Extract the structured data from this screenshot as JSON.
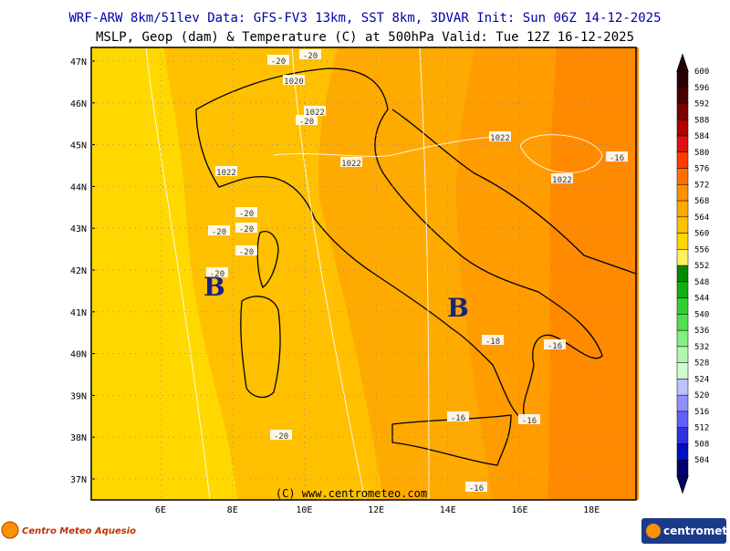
{
  "header": {
    "line1": "WRF-ARW 8km/51lev  Data: GFS-FV3 13km, SST 8km, 3DVAR  Init: Sun 06Z 14-12-2025",
    "line2": "MSLP, Geop (dam) & Temperature (C) at 500hPa  Valid: Tue 12Z 16-12-2025"
  },
  "axes": {
    "latitudes": [
      "47N",
      "46N",
      "45N",
      "44N",
      "43N",
      "42N",
      "41N",
      "40N",
      "39N",
      "38N",
      "37N"
    ],
    "longitudes": [
      "6E",
      "8E",
      "10E",
      "12E",
      "14E",
      "16E",
      "18E"
    ]
  },
  "colorbar": {
    "levels": [
      {
        "label": "600",
        "color": "#2a0000"
      },
      {
        "label": "596",
        "color": "#4a0000"
      },
      {
        "label": "592",
        "color": "#7a0000"
      },
      {
        "label": "588",
        "color": "#b00000"
      },
      {
        "label": "584",
        "color": "#e01010"
      },
      {
        "label": "580",
        "color": "#ff3c00"
      },
      {
        "label": "576",
        "color": "#ff7000"
      },
      {
        "label": "572",
        "color": "#ff9000"
      },
      {
        "label": "568",
        "color": "#ffaa00"
      },
      {
        "label": "564",
        "color": "#ffc000"
      },
      {
        "label": "560",
        "color": "#ffd800"
      },
      {
        "label": "556",
        "color": "#fff060"
      },
      {
        "label": "552",
        "color": "#008a00"
      },
      {
        "label": "548",
        "color": "#10b010"
      },
      {
        "label": "544",
        "color": "#30d030"
      },
      {
        "label": "540",
        "color": "#50e050"
      },
      {
        "label": "536",
        "color": "#80f080"
      },
      {
        "label": "532",
        "color": "#b0f8b0"
      },
      {
        "label": "528",
        "color": "#d0fcd0"
      },
      {
        "label": "524",
        "color": "#c0c0ff"
      },
      {
        "label": "520",
        "color": "#9090ff"
      },
      {
        "label": "516",
        "color": "#6060ff"
      },
      {
        "label": "512",
        "color": "#3030e0"
      },
      {
        "label": "508",
        "color": "#0010c0"
      },
      {
        "label": "504",
        "color": "#000070"
      }
    ]
  },
  "contour_labels": [
    "-20",
    "-20",
    "1020",
    "1022",
    "-20",
    "1022",
    "1022",
    "1022",
    "-16",
    "1022",
    "-20",
    "-20",
    "-20",
    "-20",
    "-20",
    "-18",
    "-16",
    "-16",
    "-16",
    "-20",
    "-16"
  ],
  "lows": [
    "B",
    "B"
  ],
  "copyright": "(C) www.centrometeo.com",
  "logos": {
    "left": "Centro Meteo Aquesio",
    "right": "centrometeo"
  }
}
